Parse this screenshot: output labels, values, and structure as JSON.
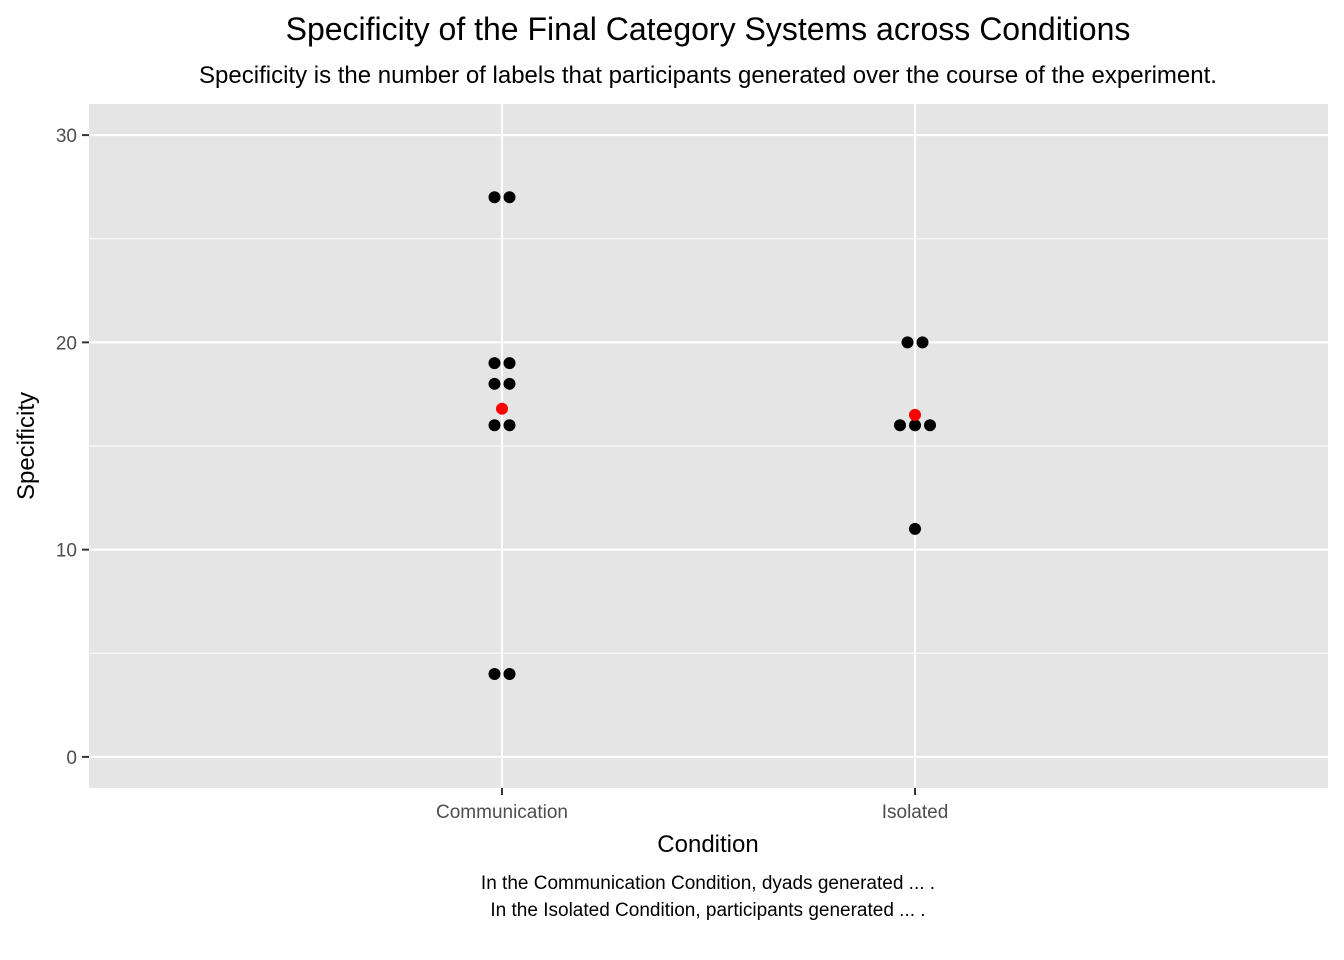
{
  "chart_data": {
    "type": "scatter",
    "title": "Specificity of the Final Category Systems across Conditions",
    "subtitle": "Specificity is the number of labels that participants generated over the course of the experiment.",
    "xlabel": "Condition",
    "ylabel": "Specificity",
    "categories": [
      "Communication",
      "Isolated"
    ],
    "ylim": [
      -1.5,
      31.5
    ],
    "yticks": [
      0,
      10,
      20,
      30
    ],
    "grid": true,
    "series": [
      {
        "values": [
          {
            "x": "Communication",
            "y": 27
          },
          {
            "x": "Communication",
            "y": 27
          },
          {
            "x": "Communication",
            "y": 19
          },
          {
            "x": "Communication",
            "y": 19
          },
          {
            "x": "Communication",
            "y": 18
          },
          {
            "x": "Communication",
            "y": 18
          },
          {
            "x": "Communication",
            "y": 16
          },
          {
            "x": "Communication",
            "y": 16
          },
          {
            "x": "Communication",
            "y": 4
          },
          {
            "x": "Communication",
            "y": 4
          },
          {
            "x": "Isolated",
            "y": 20
          },
          {
            "x": "Isolated",
            "y": 20
          },
          {
            "x": "Isolated",
            "y": 16
          },
          {
            "x": "Isolated",
            "y": 16
          },
          {
            "x": "Isolated",
            "y": 16
          },
          {
            "x": "Isolated",
            "y": 11
          }
        ],
        "color": "#000000"
      },
      {
        "values": [
          {
            "x": "Communication",
            "y": 16.8
          },
          {
            "x": "Isolated",
            "y": 16.5
          }
        ],
        "color": "#ff0000"
      }
    ],
    "caption": [
      "In the Communication Condition, dyads generated ... .",
      "In the Isolated Condition, participants generated ... ."
    ],
    "panel_background": "#e5e5e5",
    "grid_color": "#ffffff"
  }
}
